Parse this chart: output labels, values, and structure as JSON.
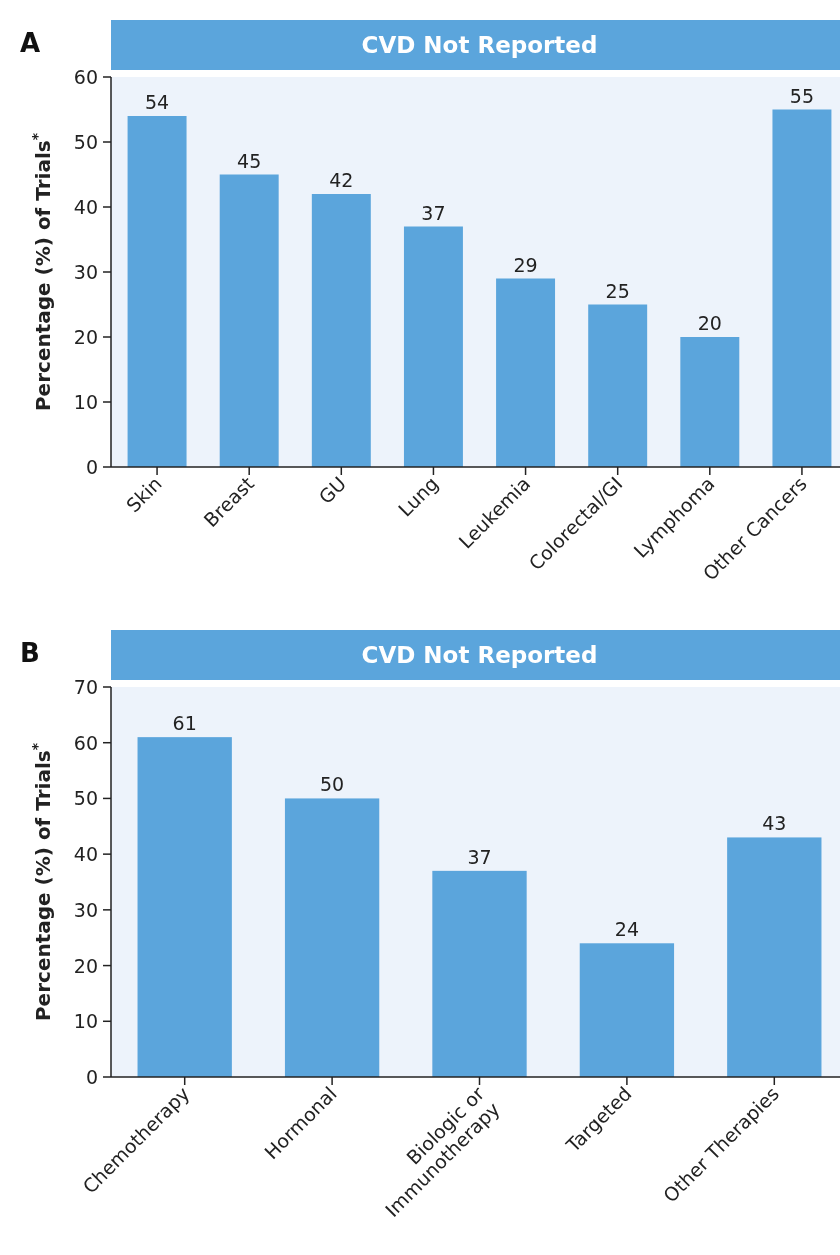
{
  "chart_data": [
    {
      "type": "bar",
      "title": "CVD Not Reported",
      "ylabel": "Percentage (%) of Trials$^{*}$",
      "annotations": [
        "A"
      ],
      "categories": [
        "Skin",
        "Breast",
        "GU",
        "Lung",
        "Leukemia",
        "Colorectal/GI",
        "Lymphoma",
        "Other Cancers"
      ],
      "values": [
        54,
        45,
        42,
        37,
        29,
        25,
        20,
        55
      ],
      "color": "#5ba5dc",
      "ylim": [
        0,
        60
      ],
      "yticks": [
        0,
        10,
        20,
        30,
        40,
        50,
        60
      ],
      "data_labels": true
    },
    {
      "type": "bar",
      "title": "CVD Not Reported",
      "ylabel": "Percentage (%) of Trials$^{*}$",
      "annotations": [
        "B"
      ],
      "categories": [
        "Chemotherapy",
        "Hormonal",
        "Biologic or\nImmunotherapy",
        "Targeted",
        "Other Therapies"
      ],
      "values": [
        61,
        50,
        37,
        24,
        43
      ],
      "color": "#5ba5dc",
      "ylim": [
        0,
        70
      ],
      "yticks": [
        0,
        10,
        20,
        30,
        40,
        50,
        60,
        70
      ],
      "data_labels": true
    }
  ]
}
